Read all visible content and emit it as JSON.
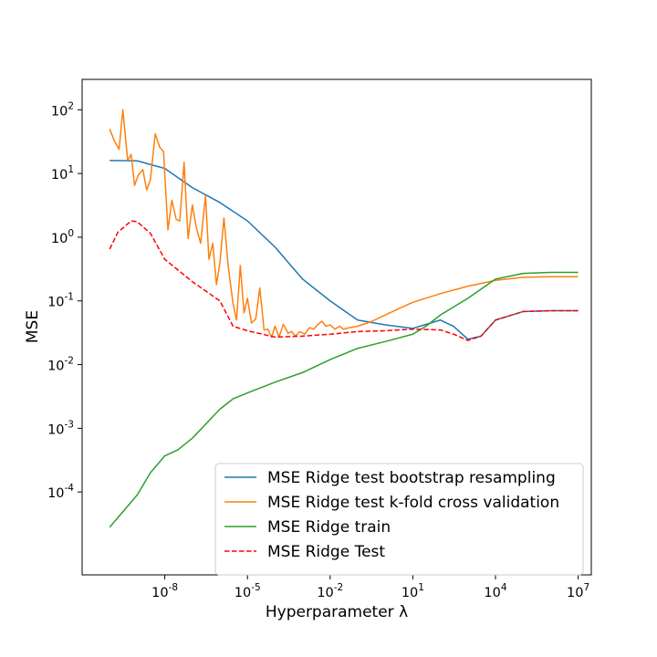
{
  "chart_data": {
    "type": "line",
    "title": "",
    "xlabel": "Hyperparameter λ",
    "ylabel": "MSE",
    "xscale": "log",
    "yscale": "log",
    "xlim": [
      1e-11,
      30000000.0
    ],
    "ylim": [
      5e-06,
      300
    ],
    "grid": false,
    "legend_position": "lower-right",
    "x_ticks": [
      {
        "exp": -8,
        "value": 1e-08
      },
      {
        "exp": -5,
        "value": 1e-05
      },
      {
        "exp": -2,
        "value": 0.01
      },
      {
        "exp": 1,
        "value": 10
      },
      {
        "exp": 4,
        "value": 10000
      },
      {
        "exp": 7,
        "value": 10000000
      }
    ],
    "y_ticks": [
      {
        "exp": -4,
        "value": 0.0001
      },
      {
        "exp": -3,
        "value": 0.001
      },
      {
        "exp": -2,
        "value": 0.01
      },
      {
        "exp": -1,
        "value": 0.1
      },
      {
        "exp": 0,
        "value": 1
      },
      {
        "exp": 1,
        "value": 10
      },
      {
        "exp": 2,
        "value": 100
      }
    ],
    "series": [
      {
        "name": "MSE Ridge test bootstrap resampling",
        "color": "#1f77b4",
        "style": "solid",
        "points": [
          [
            1e-10,
            16
          ],
          [
            1e-09,
            15.8
          ],
          [
            1e-08,
            12
          ],
          [
            1e-07,
            6
          ],
          [
            1e-06,
            3.5
          ],
          [
            1e-05,
            1.8
          ],
          [
            0.0001,
            0.7
          ],
          [
            0.001,
            0.22
          ],
          [
            0.01,
            0.1
          ],
          [
            0.1,
            0.05
          ],
          [
            1,
            0.042
          ],
          [
            10,
            0.037
          ],
          [
            100,
            0.05
          ],
          [
            300,
            0.04
          ],
          [
            1000,
            0.025
          ],
          [
            3000,
            0.028
          ],
          [
            10000,
            0.05
          ],
          [
            100000,
            0.068
          ],
          [
            1000000,
            0.07
          ],
          [
            10000000,
            0.07
          ]
        ]
      },
      {
        "name": "MSE Ridge test k-fold cross validation",
        "color": "#ff7f0e",
        "style": "solid",
        "points": [
          [
            1e-10,
            50
          ],
          [
            1.5e-10,
            32
          ],
          [
            2.2e-10,
            24
          ],
          [
            3e-10,
            100
          ],
          [
            4.5e-10,
            16
          ],
          [
            6e-10,
            20
          ],
          [
            8e-10,
            6.5
          ],
          [
            1.1e-09,
            9.5
          ],
          [
            1.6e-09,
            11.5
          ],
          [
            2.2e-09,
            5.5
          ],
          [
            3e-09,
            8
          ],
          [
            4.5e-09,
            42
          ],
          [
            6.5e-09,
            26
          ],
          [
            9e-09,
            22
          ],
          [
            1.3e-08,
            1.3
          ],
          [
            1.8e-08,
            3.8
          ],
          [
            2.6e-08,
            1.9
          ],
          [
            3.5e-08,
            1.8
          ],
          [
            5e-08,
            15
          ],
          [
            7e-08,
            0.95
          ],
          [
            1e-07,
            3.2
          ],
          [
            1.4e-07,
            1.4
          ],
          [
            2e-07,
            0.8
          ],
          [
            3e-07,
            4.5
          ],
          [
            4e-07,
            0.45
          ],
          [
            5.5e-07,
            0.8
          ],
          [
            7.5e-07,
            0.18
          ],
          [
            1e-06,
            0.4
          ],
          [
            1.4e-06,
            2
          ],
          [
            2e-06,
            0.35
          ],
          [
            3e-06,
            0.09
          ],
          [
            4e-06,
            0.05
          ],
          [
            5.5e-06,
            0.36
          ],
          [
            7.5e-06,
            0.065
          ],
          [
            1e-05,
            0.11
          ],
          [
            1.4e-05,
            0.045
          ],
          [
            2e-05,
            0.052
          ],
          [
            2.8e-05,
            0.16
          ],
          [
            4e-05,
            0.035
          ],
          [
            5.5e-05,
            0.036
          ],
          [
            7.5e-05,
            0.027
          ],
          [
            0.0001,
            0.04
          ],
          [
            0.00014,
            0.027
          ],
          [
            0.0002,
            0.043
          ],
          [
            0.0003,
            0.031
          ],
          [
            0.0004,
            0.033
          ],
          [
            0.00055,
            0.028
          ],
          [
            0.0008,
            0.033
          ],
          [
            0.0012,
            0.03
          ],
          [
            0.0018,
            0.038
          ],
          [
            0.0025,
            0.036
          ],
          [
            0.0035,
            0.042
          ],
          [
            0.005,
            0.048
          ],
          [
            0.007,
            0.04
          ],
          [
            0.01,
            0.042
          ],
          [
            0.015,
            0.036
          ],
          [
            0.022,
            0.04
          ],
          [
            0.03,
            0.036
          ],
          [
            0.05,
            0.038
          ],
          [
            0.1,
            0.04
          ],
          [
            0.3,
            0.047
          ],
          [
            1,
            0.06
          ],
          [
            3,
            0.075
          ],
          [
            10,
            0.095
          ],
          [
            100,
            0.13
          ],
          [
            1000,
            0.17
          ],
          [
            10000,
            0.21
          ],
          [
            100000,
            0.235
          ],
          [
            1000000,
            0.24
          ],
          [
            10000000,
            0.24
          ]
        ]
      },
      {
        "name": "MSE Ridge train",
        "color": "#2ca02c",
        "style": "solid",
        "points": [
          [
            1e-10,
            2.8e-05
          ],
          [
            1e-09,
            9e-05
          ],
          [
            3e-09,
            0.0002
          ],
          [
            1e-08,
            0.00037
          ],
          [
            3e-08,
            0.00046
          ],
          [
            1e-07,
            0.0007
          ],
          [
            1e-06,
            0.002
          ],
          [
            3e-06,
            0.0029
          ],
          [
            1e-05,
            0.0036
          ],
          [
            0.0001,
            0.0053
          ],
          [
            0.001,
            0.0075
          ],
          [
            0.01,
            0.012
          ],
          [
            0.1,
            0.018
          ],
          [
            1,
            0.023
          ],
          [
            10,
            0.03
          ],
          [
            30,
            0.04
          ],
          [
            100,
            0.06
          ],
          [
            1000,
            0.11
          ],
          [
            10000,
            0.22
          ],
          [
            100000,
            0.27
          ],
          [
            1000000,
            0.28
          ],
          [
            10000000,
            0.28
          ]
        ]
      },
      {
        "name": "MSE Ridge Test",
        "color": "#ff0000",
        "style": "dashed",
        "points": [
          [
            1e-10,
            0.65
          ],
          [
            2e-10,
            1.2
          ],
          [
            6e-10,
            1.8
          ],
          [
            1e-09,
            1.75
          ],
          [
            3e-09,
            1.15
          ],
          [
            1e-08,
            0.45
          ],
          [
            1e-07,
            0.2
          ],
          [
            1e-06,
            0.1
          ],
          [
            3e-06,
            0.04
          ],
          [
            1e-05,
            0.034
          ],
          [
            0.0001,
            0.027
          ],
          [
            0.001,
            0.028
          ],
          [
            0.01,
            0.03
          ],
          [
            0.1,
            0.033
          ],
          [
            1,
            0.034
          ],
          [
            10,
            0.036
          ],
          [
            100,
            0.035
          ],
          [
            300,
            0.03
          ],
          [
            1000,
            0.024
          ],
          [
            3000,
            0.028
          ],
          [
            10000,
            0.05
          ],
          [
            100000,
            0.068
          ],
          [
            1000000,
            0.07
          ],
          [
            10000000,
            0.07
          ]
        ]
      }
    ]
  }
}
